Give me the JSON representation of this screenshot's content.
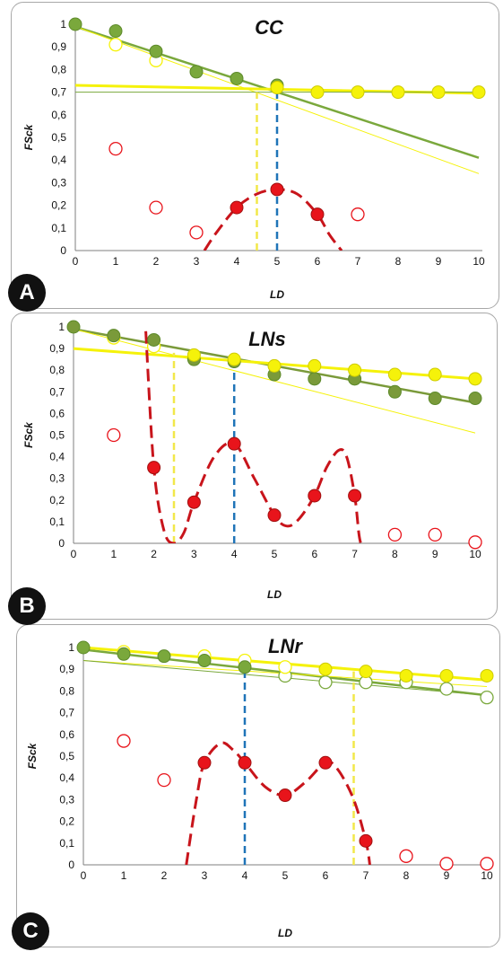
{
  "chart_data": [
    {
      "type": "scatter",
      "panel_label": "A",
      "title": "CC",
      "xlabel": "LD",
      "ylabel": "FSck",
      "xlim": [
        0,
        10
      ],
      "ylim": [
        0,
        1
      ],
      "x_ticks": [
        "0",
        "1",
        "2",
        "3",
        "4",
        "5",
        "6",
        "7",
        "8",
        "9",
        "10"
      ],
      "y_ticks": [
        "0",
        "0,1",
        "0,2",
        "0,3",
        "0,4",
        "0,5",
        "0,6",
        "0,7",
        "0,8",
        "0,9",
        "1"
      ],
      "colors": {
        "green": "#7aa83c",
        "yellow": "#f5f20a",
        "red": "#e8141b",
        "blue": "#1f74b8",
        "yellow_dash": "#f2e84a"
      },
      "series": [
        {
          "style": "green-filled",
          "points": [
            [
              0,
              1
            ],
            [
              1,
              0.97
            ],
            [
              2,
              0.88
            ],
            [
              3,
              0.79
            ],
            [
              4,
              0.76
            ],
            [
              5,
              0.73
            ]
          ]
        },
        {
          "style": "yellow-filled",
          "points": [
            [
              5,
              0.72
            ],
            [
              6,
              0.7
            ],
            [
              7,
              0.7
            ],
            [
              8,
              0.7
            ],
            [
              9,
              0.7
            ],
            [
              10,
              0.7
            ]
          ]
        },
        {
          "style": "yellow-open",
          "points": [
            [
              1,
              0.91
            ],
            [
              2,
              0.84
            ]
          ]
        },
        {
          "style": "red-filled",
          "points": [
            [
              4,
              0.19
            ],
            [
              5,
              0.27
            ],
            [
              6,
              0.16
            ]
          ]
        },
        {
          "style": "red-open",
          "points": [
            [
              1,
              0.45
            ],
            [
              2,
              0.19
            ],
            [
              3,
              0.08
            ],
            [
              7,
              0.16
            ]
          ]
        }
      ],
      "trendlines": [
        {
          "color": "green",
          "from": [
            0,
            0.99
          ],
          "to": [
            10,
            0.41
          ]
        },
        {
          "color": "yellow",
          "from": [
            0,
            0.73
          ],
          "to": [
            10,
            0.695
          ],
          "width": 3
        },
        {
          "color": "yellow",
          "from": [
            0,
            0.99
          ],
          "to": [
            10,
            0.34
          ],
          "width": 1
        },
        {
          "color": "green",
          "from": [
            0,
            0.7
          ],
          "to": [
            10,
            0.7
          ],
          "width": 1
        }
      ],
      "curve": [
        [
          3.2,
          0
        ],
        [
          3.5,
          0.08
        ],
        [
          4,
          0.19
        ],
        [
          4.5,
          0.25
        ],
        [
          5,
          0.27
        ],
        [
          5.5,
          0.25
        ],
        [
          6,
          0.16
        ],
        [
          6.3,
          0.07
        ],
        [
          6.6,
          0
        ]
      ],
      "vlines": [
        {
          "color": "yellow_dash",
          "x": 4.5,
          "ytop": 0.7
        },
        {
          "color": "blue",
          "x": 5,
          "ytop": 0.72
        }
      ]
    },
    {
      "type": "scatter",
      "panel_label": "B",
      "title": "LNs",
      "xlabel": "LD",
      "ylabel": "FSck",
      "xlim": [
        0,
        10
      ],
      "ylim": [
        0,
        1
      ],
      "x_ticks": [
        "0",
        "1",
        "2",
        "3",
        "4",
        "5",
        "6",
        "7",
        "8",
        "9",
        "10"
      ],
      "y_ticks": [
        "0",
        "0,1",
        "0,2",
        "0,3",
        "0,4",
        "0,5",
        "0,6",
        "0,7",
        "0,8",
        "0,9",
        "1"
      ],
      "colors": {
        "green": "#7a9a3a",
        "yellow": "#f5f20a",
        "red": "#e8141b",
        "blue": "#1f74b8",
        "yellow_dash": "#f2e84a"
      },
      "series": [
        {
          "style": "green-filled",
          "points": [
            [
              0,
              1
            ],
            [
              1,
              0.96
            ],
            [
              2,
              0.94
            ],
            [
              3,
              0.85
            ],
            [
              4,
              0.84
            ],
            [
              5,
              0.78
            ],
            [
              6,
              0.76
            ],
            [
              7,
              0.76
            ],
            [
              8,
              0.7
            ],
            [
              9,
              0.67
            ],
            [
              10,
              0.67
            ]
          ]
        },
        {
          "style": "yellow-filled",
          "points": [
            [
              3,
              0.87
            ],
            [
              4,
              0.85
            ],
            [
              5,
              0.82
            ],
            [
              6,
              0.82
            ],
            [
              7,
              0.8
            ],
            [
              8,
              0.78
            ],
            [
              9,
              0.78
            ],
            [
              10,
              0.76
            ]
          ]
        },
        {
          "style": "yellow-open",
          "points": [
            [
              1,
              0.95
            ],
            [
              2,
              0.91
            ]
          ]
        },
        {
          "style": "red-filled",
          "points": [
            [
              2,
              0.35
            ],
            [
              3,
              0.19
            ],
            [
              4,
              0.46
            ],
            [
              5,
              0.13
            ],
            [
              6,
              0.22
            ],
            [
              7,
              0.22
            ]
          ]
        },
        {
          "style": "red-open",
          "points": [
            [
              1,
              0.5
            ],
            [
              8,
              0.04
            ],
            [
              9,
              0.04
            ],
            [
              10,
              0.005
            ]
          ]
        }
      ],
      "trendlines": [
        {
          "color": "green",
          "from": [
            0,
            0.99
          ],
          "to": [
            10,
            0.65
          ]
        },
        {
          "color": "yellow",
          "from": [
            0,
            0.9
          ],
          "to": [
            10,
            0.76
          ],
          "width": 3
        },
        {
          "color": "yellow",
          "from": [
            0,
            0.99
          ],
          "to": [
            10,
            0.51
          ],
          "width": 1
        }
      ],
      "curve": [
        [
          1.8,
          0.98
        ],
        [
          2,
          0.35
        ],
        [
          2.25,
          0.06
        ],
        [
          2.5,
          0
        ],
        [
          2.75,
          0.05
        ],
        [
          3,
          0.19
        ],
        [
          3.5,
          0.4
        ],
        [
          4,
          0.46
        ],
        [
          4.5,
          0.3
        ],
        [
          5,
          0.13
        ],
        [
          5.3,
          0.08
        ],
        [
          5.6,
          0.11
        ],
        [
          6,
          0.22
        ],
        [
          6.3,
          0.35
        ],
        [
          6.6,
          0.43
        ],
        [
          6.8,
          0.4
        ],
        [
          7,
          0.22
        ],
        [
          7.1,
          0.05
        ],
        [
          7.15,
          0
        ]
      ],
      "vlines": [
        {
          "color": "yellow_dash",
          "x": 2.5,
          "ytop": 0.88
        },
        {
          "color": "blue",
          "x": 4,
          "ytop": 0.85
        }
      ]
    },
    {
      "type": "scatter",
      "panel_label": "C",
      "title": "LNr",
      "xlabel": "LD",
      "ylabel": "FSck",
      "xlim": [
        0,
        10
      ],
      "ylim": [
        0,
        1
      ],
      "x_ticks": [
        "0",
        "1",
        "2",
        "3",
        "4",
        "5",
        "6",
        "7",
        "8",
        "9",
        "10"
      ],
      "y_ticks": [
        "0",
        "0,1",
        "0,2",
        "0,3",
        "0,4",
        "0,5",
        "0,6",
        "0,7",
        "0,8",
        "0,9",
        "1"
      ],
      "colors": {
        "green": "#7aa83c",
        "yellow": "#f5f20a",
        "red": "#e8141b",
        "blue": "#1f74b8",
        "yellow_dash": "#f2e84a"
      },
      "series": [
        {
          "style": "green-filled",
          "points": [
            [
              0,
              1
            ],
            [
              1,
              0.97
            ],
            [
              2,
              0.96
            ],
            [
              3,
              0.94
            ],
            [
              4,
              0.91
            ]
          ]
        },
        {
          "style": "yellow-filled",
          "points": [
            [
              6,
              0.9
            ],
            [
              7,
              0.89
            ],
            [
              8,
              0.87
            ],
            [
              9,
              0.87
            ],
            [
              10,
              0.87
            ]
          ]
        },
        {
          "style": "yellow-open",
          "points": [
            [
              1,
              0.98
            ],
            [
              3,
              0.96
            ],
            [
              4,
              0.94
            ],
            [
              5,
              0.91
            ]
          ]
        },
        {
          "style": "green-open",
          "points": [
            [
              5,
              0.87
            ],
            [
              6,
              0.84
            ],
            [
              7,
              0.84
            ],
            [
              8,
              0.84
            ],
            [
              9,
              0.81
            ],
            [
              10,
              0.77
            ]
          ]
        },
        {
          "style": "red-filled",
          "points": [
            [
              3,
              0.47
            ],
            [
              4,
              0.47
            ],
            [
              5,
              0.32
            ],
            [
              6,
              0.47
            ],
            [
              7,
              0.11
            ]
          ]
        },
        {
          "style": "red-open",
          "points": [
            [
              1,
              0.57
            ],
            [
              2,
              0.39
            ],
            [
              8,
              0.04
            ],
            [
              9,
              0.005
            ],
            [
              10,
              0.005
            ]
          ]
        }
      ],
      "trendlines": [
        {
          "color": "green",
          "from": [
            0,
            0.99
          ],
          "to": [
            10,
            0.78
          ]
        },
        {
          "color": "yellow",
          "from": [
            0,
            1
          ],
          "to": [
            10,
            0.85
          ],
          "width": 3
        },
        {
          "color": "yellow",
          "from": [
            0,
            0.94
          ],
          "to": [
            10,
            0.82
          ],
          "width": 1
        },
        {
          "color": "green",
          "from": [
            0,
            0.94
          ],
          "to": [
            10,
            0.78
          ],
          "width": 1
        }
      ],
      "curve": [
        [
          2.55,
          0
        ],
        [
          2.8,
          0.3
        ],
        [
          3,
          0.47
        ],
        [
          3.4,
          0.56
        ],
        [
          3.7,
          0.53
        ],
        [
          4,
          0.47
        ],
        [
          4.5,
          0.36
        ],
        [
          5,
          0.32
        ],
        [
          5.5,
          0.38
        ],
        [
          6,
          0.47
        ],
        [
          6.3,
          0.44
        ],
        [
          6.7,
          0.3
        ],
        [
          7,
          0.11
        ],
        [
          7.1,
          0
        ]
      ],
      "vlines": [
        {
          "color": "blue",
          "x": 4,
          "ytop": 0.91
        },
        {
          "color": "yellow_dash",
          "x": 6.7,
          "ytop": 0.89
        }
      ]
    }
  ]
}
